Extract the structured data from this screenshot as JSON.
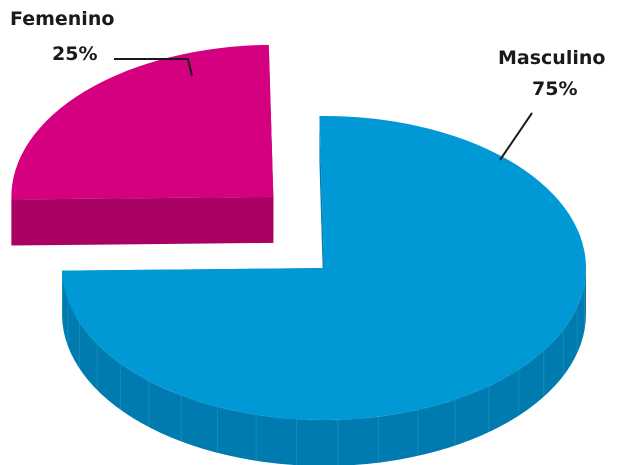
{
  "chart_data": {
    "type": "pie",
    "style": "3d-exploded",
    "categories": [
      "Masculino",
      "Femenino"
    ],
    "values": [
      75,
      25
    ],
    "value_labels": [
      "75%",
      "25%"
    ],
    "colors": [
      "#0099d6",
      "#d4007f"
    ],
    "side_colors": [
      "#007baf",
      "#a80063"
    ],
    "exploded": [
      "Femenino"
    ],
    "title": "",
    "legend": "none"
  }
}
